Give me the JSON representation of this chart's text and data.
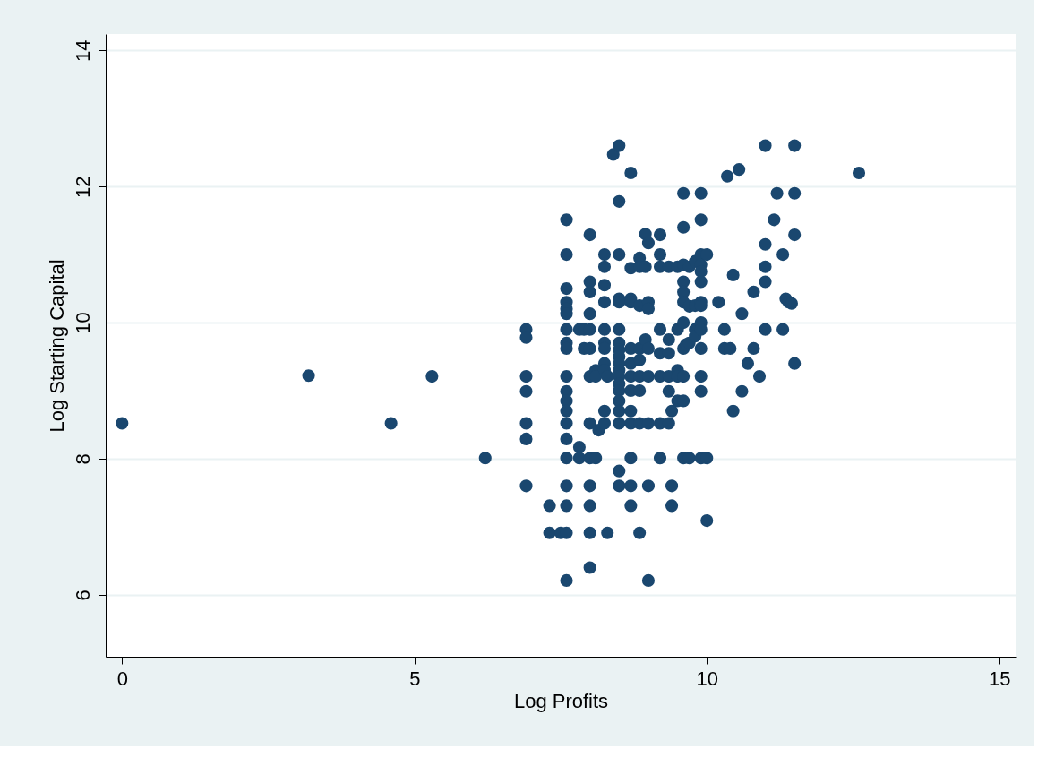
{
  "chart_data": {
    "type": "scatter",
    "xlabel": "Log Profits",
    "ylabel": "Log Starting Capital",
    "x": [
      0,
      3.19,
      4.6,
      5.3,
      6.21,
      6.91,
      6.91,
      6.91,
      6.91,
      6.91,
      6.91,
      6.91,
      7.31,
      7.31,
      7.5,
      7.6,
      7.6,
      7.6,
      7.6,
      7.6,
      7.6,
      7.6,
      7.6,
      7.6,
      7.6,
      7.6,
      7.6,
      7.6,
      7.6,
      7.6,
      7.6,
      7.6,
      7.6,
      7.6,
      7.6,
      7.82,
      7.82,
      7.82,
      7.9,
      7.9,
      8.0,
      8.0,
      8.0,
      8.0,
      8.0,
      8.0,
      8.0,
      8.0,
      8.0,
      8.0,
      8.0,
      8.0,
      8.0,
      8.1,
      8.1,
      8.1,
      8.15,
      8.25,
      8.25,
      8.25,
      8.25,
      8.25,
      8.25,
      8.25,
      8.25,
      8.25,
      8.25,
      8.25,
      8.3,
      8.3,
      8.4,
      8.5,
      8.5,
      8.5,
      8.5,
      8.5,
      8.5,
      8.5,
      8.5,
      8.5,
      8.5,
      8.5,
      8.5,
      8.5,
      8.5,
      8.5,
      8.5,
      8.5,
      8.5,
      8.5,
      8.7,
      8.7,
      8.7,
      8.7,
      8.7,
      8.7,
      8.7,
      8.7,
      8.7,
      8.7,
      8.7,
      8.7,
      8.7,
      8.85,
      8.85,
      8.85,
      8.85,
      8.85,
      8.85,
      8.85,
      8.85,
      8.85,
      8.95,
      9.0,
      8.95,
      9.0,
      9.0,
      8.95,
      9.0,
      9.0,
      9.0,
      9.0,
      9.0,
      9.2,
      9.2,
      9.2,
      9.2,
      9.2,
      9.2,
      9.2,
      9.2,
      9.35,
      9.35,
      9.35,
      9.35,
      9.35,
      9.35,
      9.4,
      9.4,
      9.4,
      9.5,
      9.5,
      9.5,
      9.5,
      9.5,
      9.6,
      9.6,
      9.6,
      9.6,
      9.6,
      9.6,
      9.6,
      9.6,
      9.65,
      9.6,
      9.6,
      9.6,
      9.7,
      9.7,
      9.7,
      9.7,
      9.8,
      9.8,
      9.8,
      9.8,
      9.9,
      9.9,
      9.9,
      9.9,
      9.9,
      9.9,
      9.9,
      9.9,
      9.9,
      9.9,
      9.9,
      9.9,
      9.9,
      9.9,
      10.0,
      10.0,
      10.0,
      10.2,
      10.3,
      10.3,
      10.4,
      10.35,
      10.55,
      10.45,
      10.45,
      10.6,
      10.6,
      10.7,
      10.8,
      10.8,
      10.9,
      11.0,
      11.0,
      11.0,
      11.0,
      11.0,
      11.15,
      11.2,
      11.3,
      11.3,
      11.35,
      11.4,
      11.45,
      11.5,
      11.5,
      11.5,
      11.5,
      12.6
    ],
    "values": [
      8.52,
      9.22,
      8.52,
      9.21,
      8.01,
      9.9,
      9.78,
      9.21,
      8.99,
      8.52,
      8.29,
      7.6,
      7.31,
      6.91,
      6.91,
      11.51,
      11.0,
      10.5,
      10.3,
      10.2,
      10.13,
      9.9,
      9.7,
      9.62,
      9.21,
      8.99,
      8.85,
      8.7,
      8.52,
      8.29,
      8.01,
      7.6,
      7.31,
      6.91,
      6.21,
      9.9,
      8.17,
      8.01,
      9.9,
      9.62,
      11.29,
      10.6,
      10.45,
      10.13,
      9.9,
      9.62,
      9.21,
      8.52,
      8.01,
      7.6,
      7.31,
      6.91,
      6.4,
      9.3,
      9.21,
      8.01,
      8.42,
      11.0,
      10.82,
      10.55,
      10.3,
      9.9,
      9.7,
      9.62,
      9.4,
      9.3,
      8.7,
      8.52,
      9.21,
      6.91,
      12.47,
      12.6,
      11.78,
      11.0,
      10.35,
      10.3,
      9.9,
      9.7,
      9.6,
      9.5,
      9.4,
      9.3,
      9.21,
      9.1,
      9.0,
      8.85,
      8.7,
      8.52,
      7.82,
      7.6,
      12.2,
      10.8,
      10.35,
      10.3,
      9.62,
      9.4,
      9.21,
      9.0,
      8.7,
      8.52,
      8.01,
      7.6,
      7.31,
      10.95,
      10.82,
      10.25,
      9.62,
      9.45,
      9.21,
      9.0,
      8.52,
      6.91,
      11.3,
      11.17,
      10.82,
      10.3,
      10.2,
      9.75,
      9.62,
      9.21,
      8.52,
      7.6,
      6.21,
      11.29,
      11.0,
      10.82,
      9.9,
      9.55,
      9.21,
      8.52,
      8.01,
      10.82,
      9.75,
      9.55,
      9.21,
      8.99,
      8.52,
      8.7,
      7.6,
      7.31,
      10.82,
      9.9,
      9.3,
      9.21,
      8.85,
      11.9,
      11.4,
      10.85,
      10.6,
      10.45,
      10.3,
      10.0,
      9.62,
      9.68,
      9.21,
      8.85,
      8.01,
      10.82,
      10.24,
      9.7,
      8.01,
      10.9,
      10.25,
      9.9,
      9.8,
      11.9,
      11.51,
      11.0,
      10.85,
      10.75,
      10.6,
      10.3,
      10.25,
      10.0,
      9.9,
      9.62,
      9.21,
      8.99,
      8.01,
      11.0,
      7.09,
      8.01,
      10.3,
      9.9,
      9.62,
      9.62,
      12.15,
      12.25,
      10.7,
      8.7,
      10.13,
      8.99,
      9.4,
      10.45,
      9.62,
      9.21,
      12.6,
      11.15,
      10.82,
      10.6,
      9.9,
      11.51,
      11.9,
      11.0,
      9.9,
      10.35,
      10.3,
      10.28,
      12.6,
      11.9,
      11.29,
      9.4,
      12.2
    ],
    "color": "#1a476f",
    "marker": "circle",
    "xlim": [
      -0.28,
      15.28
    ],
    "ylim": [
      5.09,
      14.24
    ],
    "xticks": [
      0,
      5,
      10,
      15
    ],
    "yticks": [
      6,
      8,
      10,
      12,
      14
    ],
    "grid": "y"
  }
}
